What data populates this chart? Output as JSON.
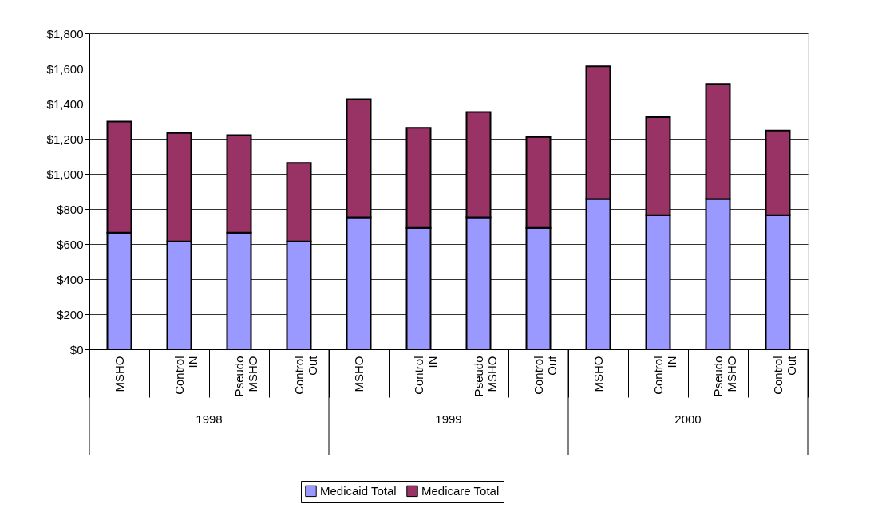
{
  "chart_data": {
    "type": "bar",
    "stacked": true,
    "categories": [
      "MSHO",
      "Control IN",
      "Pseudo MSHO",
      "Control Out",
      "MSHO",
      "Control IN",
      "Pseudo MSHO",
      "Control Out",
      "MSHO",
      "Control IN",
      "Pseudo MSHO",
      "Control Out"
    ],
    "series": [
      {
        "name": "Medicaid Total",
        "color": "#9999ff",
        "values": [
          665,
          615,
          665,
          615,
          752,
          692,
          752,
          692,
          857,
          765,
          857,
          765
        ]
      },
      {
        "name": "Medicare Total",
        "color": "#993366",
        "values": [
          633,
          618,
          555,
          448,
          673,
          571,
          600,
          518,
          755,
          558,
          656,
          482
        ]
      }
    ],
    "ylim": [
      0,
      1800
    ],
    "yticks": [
      {
        "value": 0,
        "label": "$0"
      },
      {
        "value": 200,
        "label": "$200"
      },
      {
        "value": 400,
        "label": "$400"
      },
      {
        "value": 600,
        "label": "$600"
      },
      {
        "value": 800,
        "label": "$800"
      },
      {
        "value": 1000,
        "label": "$1,000"
      },
      {
        "value": 1200,
        "label": "$1,200"
      },
      {
        "value": 1400,
        "label": "$1,400"
      },
      {
        "value": 1600,
        "label": "$1,600"
      },
      {
        "value": 1800,
        "label": "$1,800"
      }
    ],
    "annotations": [
      "1998",
      "1999",
      "2000"
    ],
    "grid": "y",
    "legend": "bottom"
  }
}
